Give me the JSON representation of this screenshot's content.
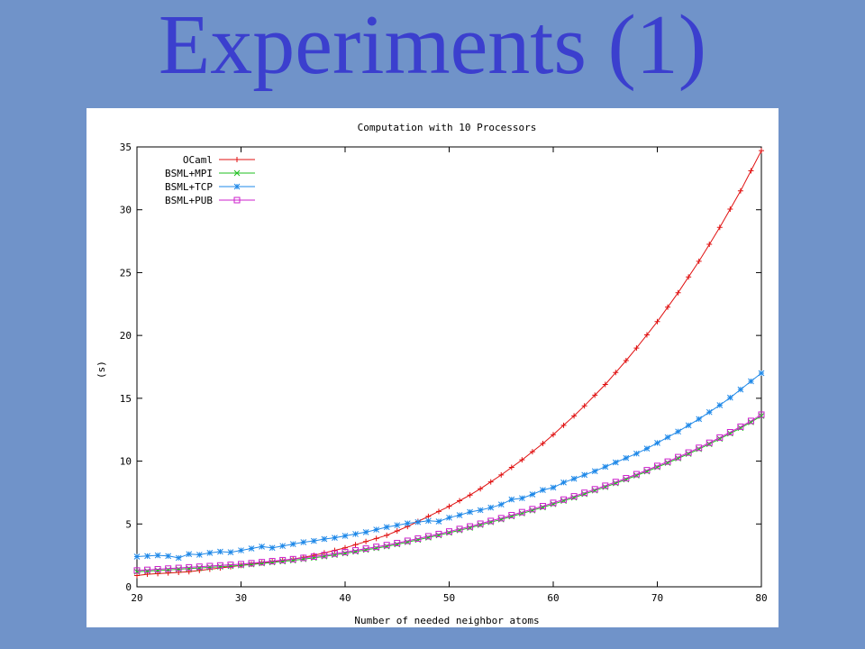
{
  "slide": {
    "title": "Experiments (1)"
  },
  "chart_data": {
    "type": "line",
    "title": "Computation with 10 Processors",
    "xlabel": "Number of needed neighbor atoms",
    "ylabel": "(s)",
    "xlim": [
      20,
      80
    ],
    "ylim": [
      0,
      35
    ],
    "xticks": [
      20,
      30,
      40,
      50,
      60,
      70,
      80
    ],
    "yticks": [
      0,
      5,
      10,
      15,
      20,
      25,
      30,
      35
    ],
    "grid": false,
    "legend_position": "top-left",
    "x": [
      20,
      21,
      22,
      23,
      24,
      25,
      26,
      27,
      28,
      29,
      30,
      31,
      32,
      33,
      34,
      35,
      36,
      37,
      38,
      39,
      40,
      41,
      42,
      43,
      44,
      45,
      46,
      47,
      48,
      49,
      50,
      51,
      52,
      53,
      54,
      55,
      56,
      57,
      58,
      59,
      60,
      61,
      62,
      63,
      64,
      65,
      66,
      67,
      68,
      69,
      70,
      71,
      72,
      73,
      74,
      75,
      76,
      77,
      78,
      79,
      80
    ],
    "series": [
      {
        "name": "OCaml",
        "color": "#e01010",
        "marker": "plus",
        "values": [
          0.9,
          1.0,
          1.05,
          1.1,
          1.15,
          1.2,
          1.3,
          1.4,
          1.5,
          1.6,
          1.7,
          1.8,
          1.9,
          2.0,
          2.1,
          2.2,
          2.35,
          2.5,
          2.7,
          2.9,
          3.1,
          3.35,
          3.6,
          3.85,
          4.1,
          4.45,
          4.8,
          5.2,
          5.6,
          6.0,
          6.4,
          6.85,
          7.3,
          7.8,
          8.35,
          8.9,
          9.5,
          10.1,
          10.75,
          11.4,
          12.1,
          12.85,
          13.6,
          14.4,
          15.25,
          16.1,
          17.05,
          18.0,
          19.0,
          20.05,
          21.1,
          22.25,
          23.4,
          24.65,
          25.9,
          27.25,
          28.6,
          30.05,
          31.5,
          33.1,
          34.7
        ]
      },
      {
        "name": "BSML+MPI",
        "color": "#1fbf1f",
        "marker": "x",
        "values": [
          1.2,
          1.25,
          1.3,
          1.35,
          1.4,
          1.45,
          1.5,
          1.55,
          1.6,
          1.65,
          1.7,
          1.78,
          1.86,
          1.94,
          2.02,
          2.1,
          2.2,
          2.3,
          2.42,
          2.54,
          2.66,
          2.8,
          2.94,
          3.08,
          3.22,
          3.38,
          3.56,
          3.74,
          3.92,
          4.1,
          4.3,
          4.5,
          4.7,
          4.92,
          5.14,
          5.36,
          5.6,
          5.84,
          6.08,
          6.32,
          6.58,
          6.84,
          7.1,
          7.38,
          7.66,
          7.94,
          8.24,
          8.54,
          8.86,
          9.18,
          9.52,
          9.86,
          10.22,
          10.58,
          10.96,
          11.36,
          11.78,
          12.2,
          12.64,
          13.1,
          13.6
        ]
      },
      {
        "name": "BSML+TCP",
        "color": "#1e88e8",
        "marker": "star",
        "values": [
          2.4,
          2.45,
          2.5,
          2.45,
          2.3,
          2.6,
          2.55,
          2.7,
          2.8,
          2.75,
          2.9,
          3.05,
          3.2,
          3.1,
          3.25,
          3.4,
          3.55,
          3.65,
          3.8,
          3.9,
          4.05,
          4.2,
          4.35,
          4.55,
          4.75,
          4.9,
          5.05,
          5.15,
          5.25,
          5.2,
          5.5,
          5.7,
          5.95,
          6.1,
          6.3,
          6.55,
          6.95,
          7.05,
          7.35,
          7.7,
          7.9,
          8.3,
          8.6,
          8.9,
          9.2,
          9.55,
          9.9,
          10.25,
          10.6,
          11.0,
          11.45,
          11.9,
          12.35,
          12.85,
          13.35,
          13.9,
          14.45,
          15.05,
          15.7,
          16.35,
          17.0
        ]
      },
      {
        "name": "BSML+PUB",
        "color": "#cc20cc",
        "marker": "square",
        "values": [
          1.3,
          1.35,
          1.4,
          1.45,
          1.5,
          1.55,
          1.6,
          1.65,
          1.7,
          1.75,
          1.8,
          1.88,
          1.96,
          2.04,
          2.12,
          2.2,
          2.3,
          2.4,
          2.52,
          2.64,
          2.76,
          2.9,
          3.04,
          3.18,
          3.32,
          3.48,
          3.66,
          3.84,
          4.02,
          4.2,
          4.4,
          4.6,
          4.8,
          5.02,
          5.24,
          5.46,
          5.7,
          5.94,
          6.18,
          6.42,
          6.68,
          6.94,
          7.2,
          7.48,
          7.76,
          8.04,
          8.34,
          8.64,
          8.96,
          9.28,
          9.62,
          9.96,
          10.32,
          10.68,
          11.06,
          11.46,
          11.88,
          12.3,
          12.74,
          13.2,
          13.7
        ]
      }
    ]
  }
}
